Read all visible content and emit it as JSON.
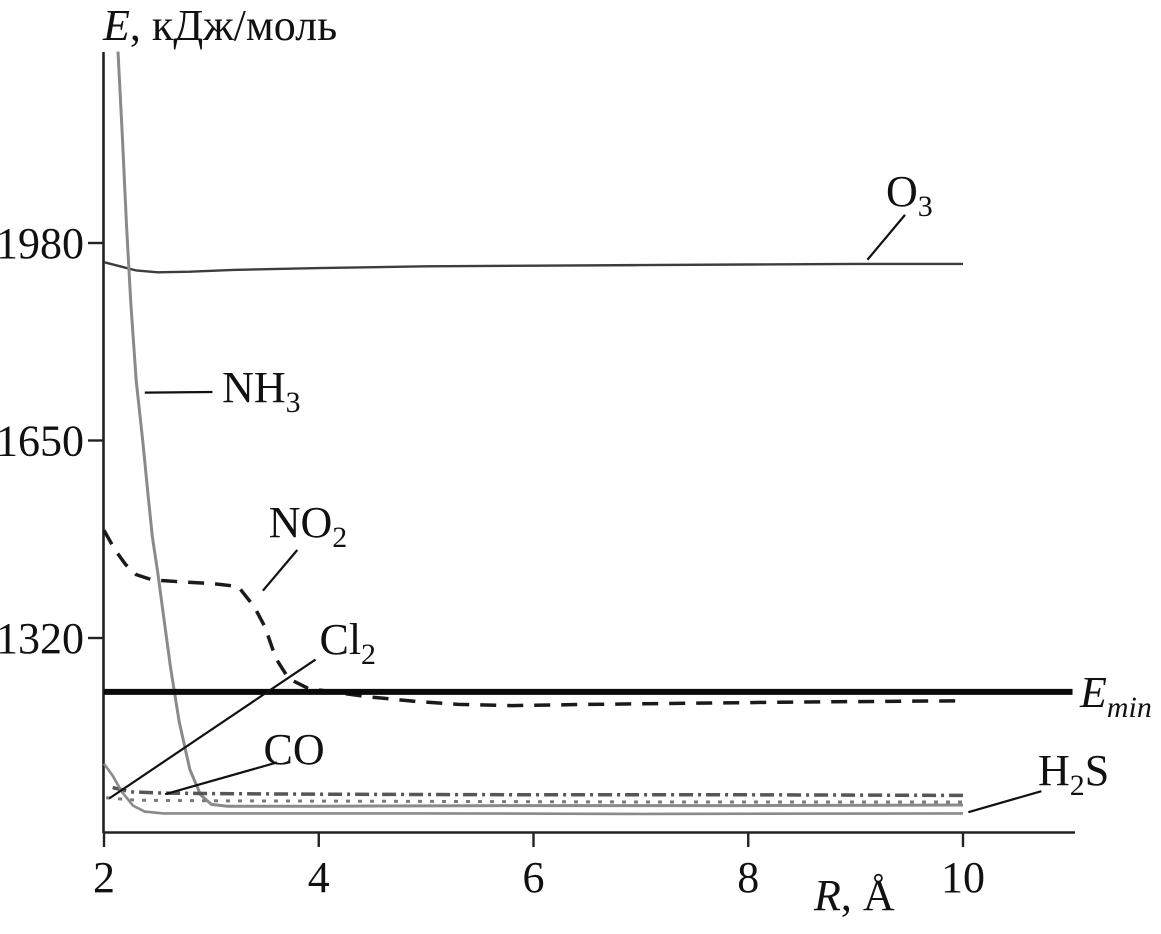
{
  "figure": {
    "y_axis_title": {
      "symbol": "E",
      "unit": ", кДж/моль"
    },
    "x_axis_title": {
      "symbol": "R",
      "unit": ", Å"
    }
  },
  "chart_data": {
    "type": "line",
    "title": "",
    "xlabel": "R, Å",
    "ylabel": "E, кДж/моль",
    "xlim": [
      2,
      11.05
    ],
    "ylim": [
      995,
      2300
    ],
    "x_ticks": [
      2,
      4,
      6,
      8,
      10
    ],
    "y_ticks": [
      1980,
      1650,
      1320
    ],
    "grid": false,
    "legend_position": "inline-annotations",
    "axis_color": "#222222",
    "series": [
      {
        "name": "O3",
        "label": "O_{3}",
        "style": "solid",
        "color": "#3d3d3d",
        "width": 2.4,
        "points": [
          [
            2.0,
            1948
          ],
          [
            2.15,
            1941
          ],
          [
            2.3,
            1934
          ],
          [
            2.5,
            1931
          ],
          [
            2.8,
            1932
          ],
          [
            3.2,
            1935
          ],
          [
            4.0,
            1938
          ],
          [
            5.0,
            1941
          ],
          [
            6.0,
            1942
          ],
          [
            7.0,
            1943
          ],
          [
            8.0,
            1944
          ],
          [
            9.0,
            1945
          ],
          [
            10.0,
            1945
          ]
        ]
      },
      {
        "name": "NH3",
        "label": "NH_{3}",
        "style": "solid",
        "color": "#8a8a8a",
        "width": 3,
        "points": [
          [
            2.13,
            2300
          ],
          [
            2.17,
            2160
          ],
          [
            2.21,
            2010
          ],
          [
            2.25,
            1880
          ],
          [
            2.3,
            1750
          ],
          [
            2.36,
            1650
          ],
          [
            2.41,
            1560
          ],
          [
            2.45,
            1490
          ],
          [
            2.5,
            1430
          ],
          [
            2.56,
            1350
          ],
          [
            2.62,
            1270
          ],
          [
            2.7,
            1180
          ],
          [
            2.8,
            1100
          ],
          [
            2.9,
            1058
          ],
          [
            3.0,
            1042
          ],
          [
            3.15,
            1039
          ],
          [
            4.0,
            1039
          ],
          [
            6.0,
            1040
          ],
          [
            8.0,
            1040
          ],
          [
            10.0,
            1041
          ]
        ]
      },
      {
        "name": "NO2",
        "label": "NO_{2}",
        "style": "dashed",
        "dash": "16 11",
        "color": "#1a1a1a",
        "width": 3.5,
        "points": [
          [
            2.0,
            1500
          ],
          [
            2.1,
            1468
          ],
          [
            2.2,
            1443
          ],
          [
            2.3,
            1426
          ],
          [
            2.45,
            1417
          ],
          [
            2.7,
            1414
          ],
          [
            3.0,
            1411
          ],
          [
            3.25,
            1406
          ],
          [
            3.4,
            1372
          ],
          [
            3.5,
            1338
          ],
          [
            3.6,
            1286
          ],
          [
            3.72,
            1252
          ],
          [
            3.9,
            1236
          ],
          [
            4.2,
            1228
          ],
          [
            4.5,
            1221
          ],
          [
            4.9,
            1214
          ],
          [
            5.3,
            1209
          ],
          [
            5.8,
            1207
          ],
          [
            6.5,
            1209
          ],
          [
            7.5,
            1211
          ],
          [
            8.5,
            1213
          ],
          [
            10.0,
            1215
          ]
        ]
      },
      {
        "name": "CO",
        "label": "CO",
        "style": "dash-dot",
        "dash": "14 5 3 5",
        "color": "#565656",
        "width": 3.5,
        "points": [
          [
            2.08,
            1070
          ],
          [
            2.25,
            1063
          ],
          [
            2.5,
            1061
          ],
          [
            3.0,
            1060
          ],
          [
            4.0,
            1059
          ],
          [
            6.0,
            1058
          ],
          [
            8.0,
            1058
          ],
          [
            10.0,
            1057
          ]
        ]
      },
      {
        "name": "Cl2",
        "label": "Cl_{2}",
        "style": "dotted",
        "dash": "4 8",
        "color": "#7b7b7b",
        "width": 3,
        "points": [
          [
            2.02,
            1053
          ],
          [
            2.3,
            1049
          ],
          [
            3.0,
            1048
          ],
          [
            5.0,
            1047
          ],
          [
            7.0,
            1046
          ],
          [
            10.0,
            1046
          ]
        ]
      },
      {
        "name": "H2S",
        "label": "H_{2}S",
        "style": "solid",
        "color": "#8a8a8a",
        "width": 2.6,
        "points": [
          [
            2.0,
            1110
          ],
          [
            2.08,
            1090
          ],
          [
            2.17,
            1062
          ],
          [
            2.27,
            1040
          ],
          [
            2.38,
            1030
          ],
          [
            2.55,
            1027
          ],
          [
            3.0,
            1027
          ],
          [
            5.0,
            1027
          ],
          [
            7.0,
            1026
          ],
          [
            10.0,
            1027
          ]
        ]
      }
    ],
    "reference_line": {
      "name": "Emin",
      "label": "E_{min}",
      "value": 1230,
      "x_range": [
        2,
        11.02
      ],
      "style": "solid",
      "color": "#0a0a0a",
      "width": 6
    },
    "annotations": [
      {
        "name": "O3",
        "formula": "O_{3}",
        "italic": false,
        "anchor": "middle",
        "r": 9.5,
        "e": 2065,
        "leader": [
          9.46,
          2027,
          9.11,
          1952
        ]
      },
      {
        "name": "NH3",
        "formula": "NH_{3}",
        "italic": false,
        "anchor": "start",
        "r": 3.1,
        "e": 1737,
        "leader": [
          3.01,
          1731,
          2.38,
          1730
        ]
      },
      {
        "name": "NO2",
        "formula": "NO_{2}",
        "italic": false,
        "anchor": "middle",
        "r": 3.9,
        "e": 1512,
        "leader": [
          3.8,
          1467,
          3.48,
          1399
        ]
      },
      {
        "name": "Cl2",
        "formula": "Cl_{2}",
        "italic": false,
        "anchor": "middle",
        "r": 4.27,
        "e": 1317,
        "leader": [
          3.97,
          1284,
          2.05,
          1052
        ]
      },
      {
        "name": "CO",
        "formula": "CO",
        "italic": false,
        "anchor": "middle",
        "r": 3.77,
        "e": 1133,
        "leader": [
          3.61,
          1112,
          2.57,
          1059
        ]
      },
      {
        "name": "H2S",
        "formula": "H_{2}S",
        "italic": false,
        "anchor": "middle",
        "r": 11.03,
        "e": 1098,
        "leader": [
          10.73,
          1064,
          10.05,
          1029
        ]
      },
      {
        "name": "Emin",
        "formula": "E_{min}",
        "italic": true,
        "anchor": "start",
        "r": 11.09,
        "e": 1228,
        "leader": null
      }
    ]
  }
}
